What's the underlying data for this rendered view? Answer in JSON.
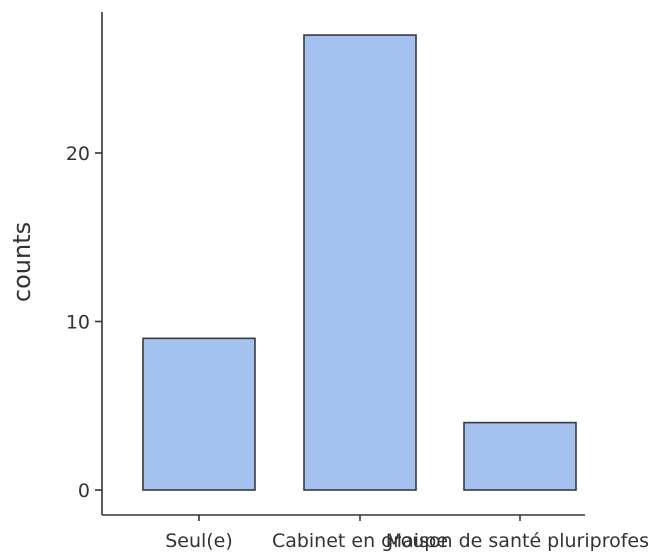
{
  "chart_data": {
    "type": "bar",
    "categories": [
      "Seul(e)",
      "Cabinet en groupe",
      "Maison de santé pluriprofessionnelle"
    ],
    "category_labels_visible": [
      "Seul(e)",
      "Cabinet en groupe",
      "Maison de santé pluriprofesi"
    ],
    "values": [
      9,
      27,
      4
    ],
    "title": "",
    "xlabel": "",
    "ylabel": "counts",
    "ylim": [
      0,
      28.5
    ],
    "yticks": [
      0,
      10,
      20
    ],
    "grid": false,
    "legend": "none",
    "colors": {
      "bar_fill": "#a4c2f0",
      "bar_stroke": "#3a3a3a",
      "axis": "#333333",
      "text": "#333333"
    }
  }
}
